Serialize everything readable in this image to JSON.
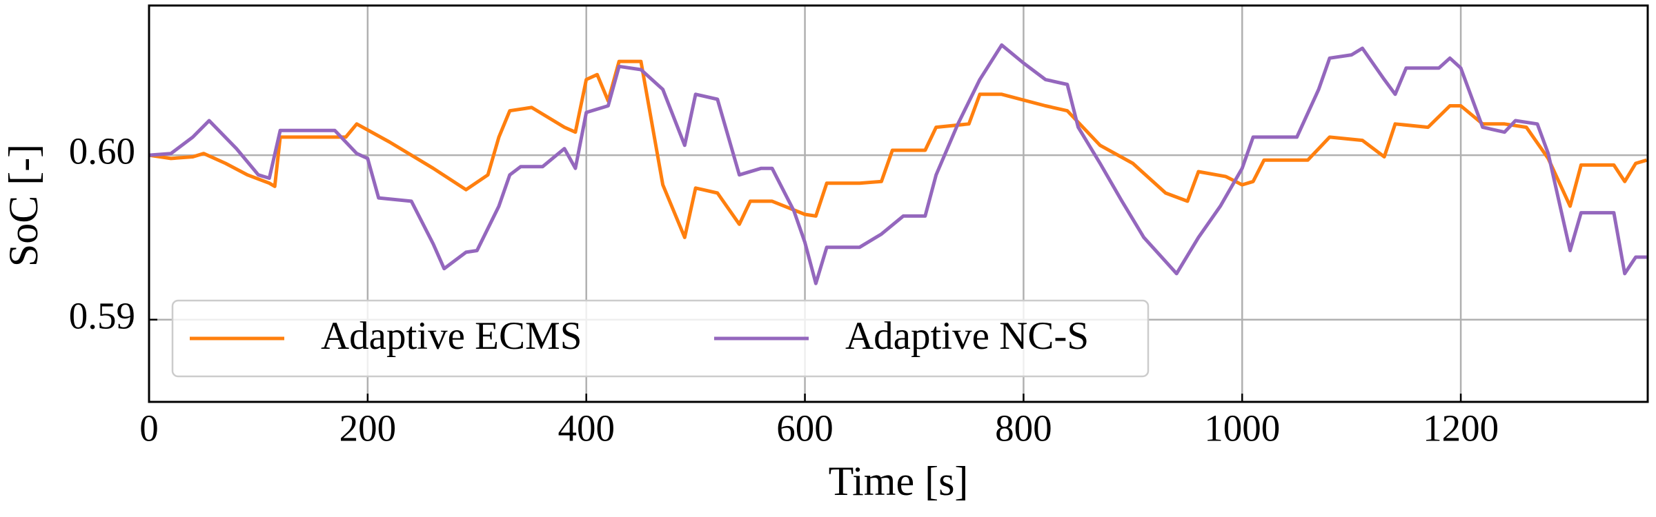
{
  "chart_data": {
    "type": "line",
    "xlabel": "Time [s]",
    "ylabel": "SoC [-]",
    "series": [
      {
        "name": "Adaptive ECMS",
        "color": "#ff7f0e",
        "x": [
          0,
          20,
          40,
          50,
          70,
          90,
          110,
          115,
          120,
          180,
          190,
          220,
          260,
          290,
          310,
          320,
          330,
          350,
          380,
          390,
          400,
          410,
          420,
          430,
          450,
          470,
          490,
          500,
          520,
          540,
          550,
          570,
          600,
          610,
          620,
          650,
          670,
          680,
          710,
          720,
          750,
          760,
          780,
          820,
          840,
          870,
          900,
          930,
          950,
          960,
          985,
          1000,
          1010,
          1020,
          1060,
          1080,
          1110,
          1130,
          1140,
          1170,
          1190,
          1200,
          1220,
          1240,
          1260,
          1280,
          1300,
          1310,
          1340,
          1350,
          1360,
          1370
        ],
        "values": [
          0.6,
          0.5998,
          0.5999,
          0.6001,
          0.5995,
          0.5988,
          0.5983,
          0.5981,
          0.6011,
          0.6011,
          0.6019,
          0.6008,
          0.5992,
          0.5979,
          0.5988,
          0.6011,
          0.6027,
          0.6029,
          0.6017,
          0.6014,
          0.6046,
          0.6049,
          0.6033,
          0.6057,
          0.6057,
          0.5982,
          0.595,
          0.598,
          0.5977,
          0.5958,
          0.5972,
          0.5972,
          0.5964,
          0.5963,
          0.5983,
          0.5983,
          0.5984,
          0.6003,
          0.6003,
          0.6017,
          0.6019,
          0.6037,
          0.6037,
          0.603,
          0.6027,
          0.6006,
          0.5995,
          0.5977,
          0.5972,
          0.599,
          0.5987,
          0.5982,
          0.5984,
          0.5997,
          0.5997,
          0.6011,
          0.6009,
          0.5999,
          0.6019,
          0.6017,
          0.603,
          0.603,
          0.6019,
          0.6019,
          0.6017,
          0.5998,
          0.5969,
          0.5994,
          0.5994,
          0.5984,
          0.5995,
          0.5997
        ]
      },
      {
        "name": "Adaptive NC-S",
        "color": "#9467bd",
        "x": [
          0,
          20,
          40,
          55,
          80,
          100,
          110,
          120,
          170,
          190,
          200,
          210,
          240,
          260,
          270,
          290,
          300,
          320,
          330,
          340,
          360,
          380,
          390,
          400,
          420,
          430,
          450,
          470,
          490,
          500,
          520,
          540,
          560,
          570,
          590,
          600,
          610,
          620,
          650,
          670,
          690,
          710,
          720,
          740,
          760,
          780,
          800,
          820,
          840,
          850,
          870,
          890,
          910,
          940,
          960,
          980,
          1000,
          1010,
          1050,
          1070,
          1080,
          1100,
          1110,
          1130,
          1140,
          1150,
          1180,
          1190,
          1200,
          1220,
          1240,
          1250,
          1270,
          1280,
          1300,
          1310,
          1340,
          1350,
          1360,
          1370
        ],
        "values": [
          0.6,
          0.6001,
          0.6011,
          0.6021,
          0.6004,
          0.5988,
          0.5986,
          0.6015,
          0.6015,
          0.6001,
          0.5998,
          0.5974,
          0.5972,
          0.5946,
          0.5931,
          0.5941,
          0.5942,
          0.5969,
          0.5988,
          0.5993,
          0.5993,
          0.6004,
          0.5992,
          0.6026,
          0.603,
          0.6054,
          0.6052,
          0.604,
          0.6006,
          0.6037,
          0.6034,
          0.5988,
          0.5992,
          0.5992,
          0.5966,
          0.5947,
          0.5922,
          0.5944,
          0.5944,
          0.5952,
          0.5963,
          0.5963,
          0.5988,
          0.6019,
          0.6046,
          0.6067,
          0.6056,
          0.6046,
          0.6043,
          0.6017,
          0.5995,
          0.5972,
          0.595,
          0.5928,
          0.595,
          0.5969,
          0.5992,
          0.6011,
          0.6011,
          0.604,
          0.6059,
          0.6061,
          0.6065,
          0.6046,
          0.6037,
          0.6053,
          0.6053,
          0.6059,
          0.6053,
          0.6017,
          0.6014,
          0.6021,
          0.6019,
          0.6001,
          0.5942,
          0.5965,
          0.5965,
          0.5928,
          0.5938,
          0.5938
        ]
      }
    ],
    "xlim": [
      0,
      1371
    ],
    "ylim": [
      0.585,
      0.6091
    ],
    "xticks": [
      0,
      200,
      400,
      600,
      800,
      1000,
      1200
    ],
    "yticks": [
      0.59,
      {
        "value": 0.6,
        "label": "0.60"
      }
    ],
    "grid": true,
    "legend": "lower left"
  }
}
